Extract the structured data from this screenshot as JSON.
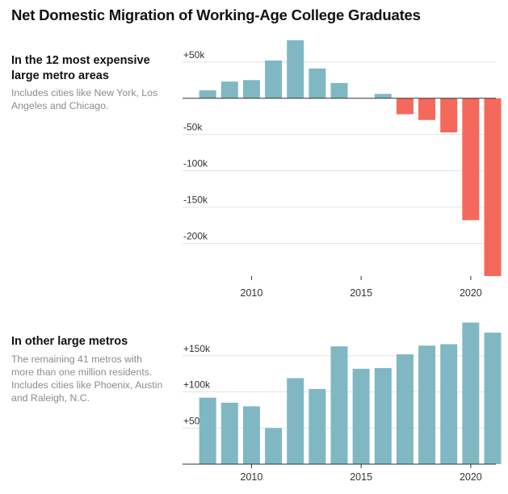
{
  "title": "Net Domestic Migration of Working-Age College Graduates",
  "colors": {
    "positive": "#7fb8c3",
    "negative": "#f4695b",
    "grid": "#e4e4e4",
    "axis": "#333333"
  },
  "chart_data": [
    {
      "type": "bar",
      "panel": "top",
      "heading": "In the 12 most expensive large metro areas",
      "note": "Includes cities like New York, Los Angeles and Chicago.",
      "x": [
        2008,
        2009,
        2010,
        2011,
        2012,
        2013,
        2014,
        2015,
        2016,
        2017,
        2018,
        2019,
        2020,
        2021
      ],
      "values": [
        11000,
        23000,
        25000,
        52000,
        80000,
        41000,
        21000,
        null,
        6000,
        -22000,
        -30000,
        -47000,
        -168000,
        -245000
      ],
      "ylim": [
        -245000,
        82000
      ],
      "yticks": [
        50000,
        -50000,
        -100000,
        -150000,
        -200000
      ],
      "ytick_labels": [
        "+50k",
        "-50k",
        "-100k",
        "-150k",
        "-200k"
      ],
      "xticks": [
        2010,
        2015,
        2020
      ],
      "xtick_labels": [
        "2010",
        "2015",
        "2020"
      ]
    },
    {
      "type": "bar",
      "panel": "bottom",
      "heading": "In other large metros",
      "note": "The remaining 41 metros with more than one million residents. Includes cities like Phoenix, Austin and Raleigh, N.C.",
      "x": [
        2008,
        2009,
        2010,
        2011,
        2012,
        2013,
        2014,
        2015,
        2016,
        2017,
        2018,
        2019,
        2020,
        2021
      ],
      "values": [
        92000,
        85000,
        80000,
        50000,
        119000,
        104000,
        163000,
        132000,
        133000,
        152000,
        164000,
        166000,
        196000,
        182000
      ],
      "ylim": [
        0,
        200000
      ],
      "yticks": [
        50000,
        100000,
        150000
      ],
      "ytick_labels": [
        "+50k",
        "+100k",
        "+150k"
      ],
      "xticks": [
        2010,
        2015,
        2020
      ],
      "xtick_labels": [
        "2010",
        "2015",
        "2020"
      ]
    }
  ]
}
